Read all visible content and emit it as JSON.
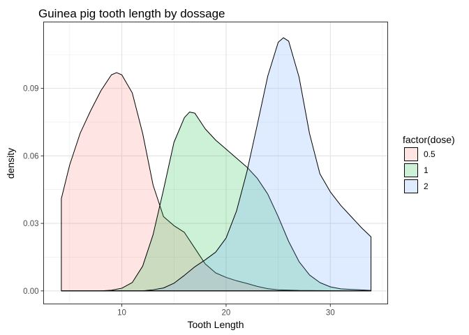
{
  "chart_data": {
    "type": "area",
    "title": "Guinea pig tooth length by dossage",
    "xlabel": "Tooth Length",
    "ylabel": "density",
    "xlim": [
      2.5,
      35.5
    ],
    "ylim": [
      -0.0058,
      0.1195
    ],
    "x_ticks": [
      10,
      20,
      30
    ],
    "x_tick_labels": [
      "10",
      "20",
      "30"
    ],
    "y_ticks": [
      0.0,
      0.03,
      0.06,
      0.09
    ],
    "y_tick_labels": [
      "0.00",
      "0.03",
      "0.06",
      "0.09"
    ],
    "grid": true,
    "legend": {
      "title": "factor(dose)",
      "position": "right"
    },
    "series": [
      {
        "name": "0.5",
        "color": "#F8766D",
        "points": [
          [
            4.2,
            0.041
          ],
          [
            5,
            0.056
          ],
          [
            6,
            0.07
          ],
          [
            7,
            0.08
          ],
          [
            8,
            0.089
          ],
          [
            9,
            0.096
          ],
          [
            9.5,
            0.097
          ],
          [
            10,
            0.096
          ],
          [
            11,
            0.088
          ],
          [
            12,
            0.07
          ],
          [
            13,
            0.047
          ],
          [
            14,
            0.033
          ],
          [
            15,
            0.029
          ],
          [
            16,
            0.026
          ],
          [
            17,
            0.019
          ],
          [
            18,
            0.012
          ],
          [
            19,
            0.008
          ],
          [
            20,
            0.006
          ],
          [
            21,
            0.0045
          ],
          [
            22,
            0.0033
          ],
          [
            23,
            0.002
          ],
          [
            24,
            0.001
          ],
          [
            25,
            0.0005
          ],
          [
            27,
            0.0002
          ],
          [
            30,
            0.0001
          ],
          [
            33.9,
            0
          ]
        ]
      },
      {
        "name": "1",
        "color": "#00BA38",
        "points": [
          [
            4.2,
            0
          ],
          [
            8,
            0
          ],
          [
            9,
            0.0003
          ],
          [
            10,
            0.0012
          ],
          [
            11,
            0.0037
          ],
          [
            12,
            0.011
          ],
          [
            13,
            0.025
          ],
          [
            14,
            0.045
          ],
          [
            15,
            0.066
          ],
          [
            16,
            0.077
          ],
          [
            16.5,
            0.0795
          ],
          [
            17,
            0.079
          ],
          [
            18,
            0.072
          ],
          [
            19,
            0.067
          ],
          [
            20,
            0.063
          ],
          [
            21,
            0.059
          ],
          [
            22,
            0.055
          ],
          [
            23,
            0.05
          ],
          [
            24,
            0.043
          ],
          [
            25,
            0.033
          ],
          [
            26,
            0.022
          ],
          [
            27,
            0.013
          ],
          [
            28,
            0.0071
          ],
          [
            29,
            0.0037
          ],
          [
            30,
            0.0018
          ],
          [
            31,
            0.0009
          ],
          [
            33.9,
            0.0002
          ]
        ]
      },
      {
        "name": "2",
        "color": "#619CFF",
        "points": [
          [
            4.2,
            0
          ],
          [
            12,
            0
          ],
          [
            13,
            0.0005
          ],
          [
            14,
            0.0013
          ],
          [
            15,
            0.0034
          ],
          [
            16,
            0.0069
          ],
          [
            17,
            0.0107
          ],
          [
            18,
            0.0138
          ],
          [
            19,
            0.0172
          ],
          [
            20,
            0.0235
          ],
          [
            21,
            0.0355
          ],
          [
            22,
            0.053
          ],
          [
            23,
            0.074
          ],
          [
            24,
            0.0955
          ],
          [
            25,
            0.1105
          ],
          [
            25.5,
            0.1125
          ],
          [
            26,
            0.111
          ],
          [
            27,
            0.095
          ],
          [
            28,
            0.07
          ],
          [
            29,
            0.052
          ],
          [
            30,
            0.044
          ],
          [
            31,
            0.038
          ],
          [
            32,
            0.033
          ],
          [
            33,
            0.028
          ],
          [
            33.9,
            0.024
          ]
        ]
      }
    ]
  }
}
